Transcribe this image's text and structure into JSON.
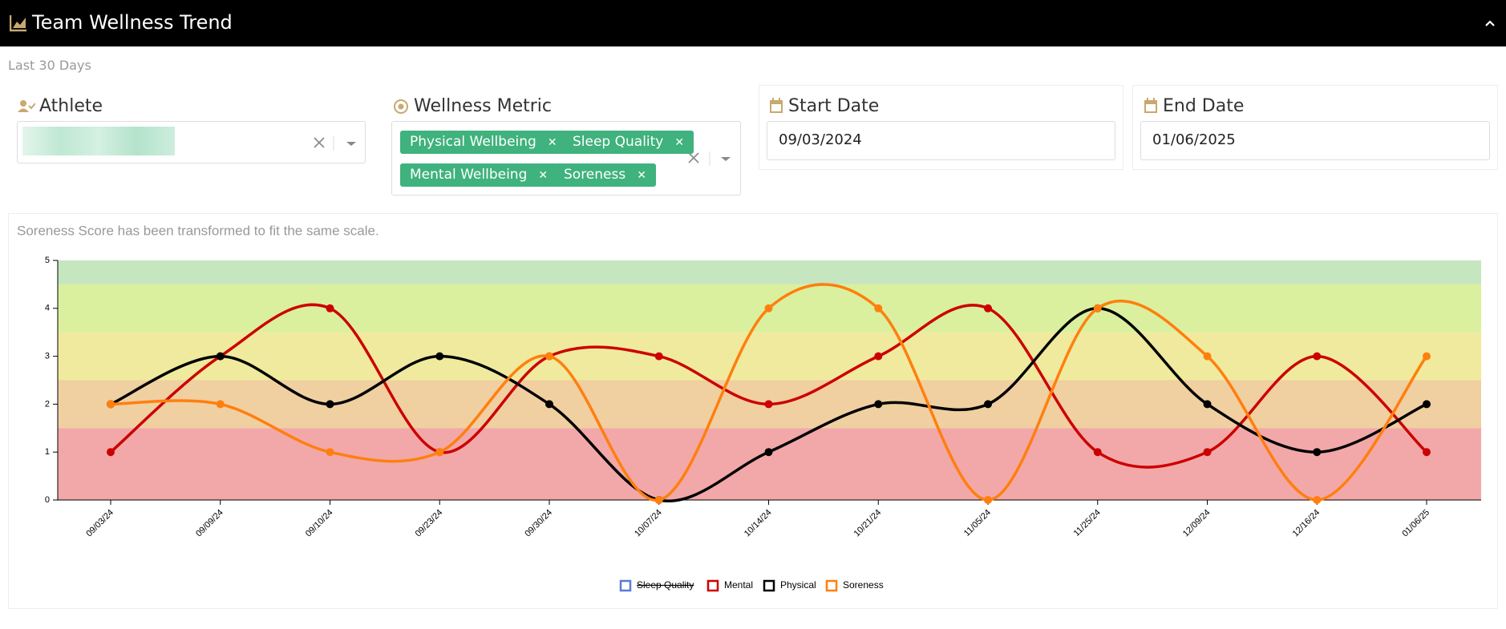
{
  "header": {
    "title": "Team Wellness Trend",
    "subtitle": "Last 30 Days"
  },
  "filters": {
    "athlete": {
      "label": "Athlete"
    },
    "metric": {
      "label": "Wellness Metric",
      "selected": [
        "Physical Wellbeing",
        "Sleep Quality",
        "Mental Wellbeing",
        "Soreness"
      ]
    },
    "start": {
      "label": "Start Date",
      "value": "09/03/2024"
    },
    "end": {
      "label": "End Date",
      "value": "01/06/2025"
    }
  },
  "chart_data": {
    "type": "line",
    "note": "Soreness Score has been transformed to fit the same scale.",
    "categories": [
      "09/03/24",
      "09/09/24",
      "09/10/24",
      "09/23/24",
      "09/30/24",
      "10/07/24",
      "10/14/24",
      "10/21/24",
      "11/05/24",
      "11/25/24",
      "12/09/24",
      "12/16/24",
      "01/06/25"
    ],
    "ylim": [
      0,
      5
    ],
    "yticks": [
      0,
      1,
      2,
      3,
      4,
      5
    ],
    "bands": [
      {
        "from": 4.5,
        "to": 5,
        "color": "#c5e6bf"
      },
      {
        "from": 3.5,
        "to": 4.5,
        "color": "#daf09e"
      },
      {
        "from": 2.5,
        "to": 3.5,
        "color": "#efea9d"
      },
      {
        "from": 1.5,
        "to": 2.5,
        "color": "#f0cfa1"
      },
      {
        "from": 0,
        "to": 1.5,
        "color": "#f2a8a8"
      }
    ],
    "legend": "bottom",
    "series": [
      {
        "name": "Sleep Quality",
        "color": "#5b7bd5",
        "hidden": true,
        "values": [
          null,
          null,
          null,
          null,
          null,
          null,
          null,
          null,
          null,
          null,
          null,
          null,
          null
        ]
      },
      {
        "name": "Mental",
        "color": "#cc0000",
        "values": [
          1,
          3,
          4,
          1,
          3,
          3,
          2,
          3,
          4,
          1,
          1,
          3,
          1
        ]
      },
      {
        "name": "Physical",
        "color": "#000000",
        "values": [
          2,
          3,
          2,
          3,
          2,
          0,
          1,
          2,
          2,
          4,
          2,
          1,
          2
        ]
      },
      {
        "name": "Soreness",
        "color": "#ff7f0e",
        "values": [
          2,
          2,
          1,
          1,
          3,
          0,
          4,
          4,
          0,
          4,
          3,
          0,
          3
        ]
      }
    ]
  }
}
